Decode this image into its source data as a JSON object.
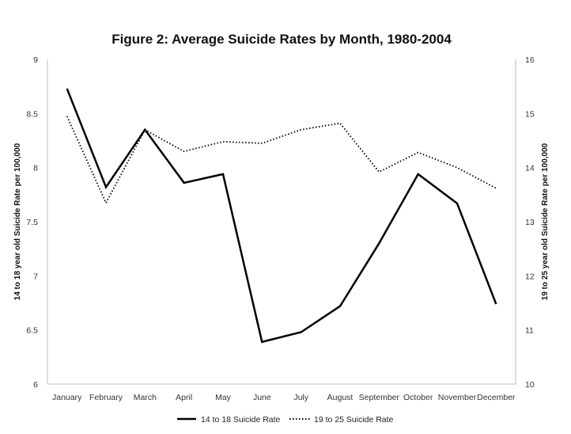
{
  "chart_data": {
    "type": "line",
    "title": "Figure 2: Average Suicide Rates by Month, 1980-2004",
    "categories": [
      "January",
      "February",
      "March",
      "April",
      "May",
      "June",
      "July",
      "August",
      "September",
      "October",
      "November",
      "December"
    ],
    "series": [
      {
        "name": "14 to 18 Suicide Rate",
        "axis": "left",
        "style": "solid",
        "values": [
          8.73,
          7.82,
          8.35,
          7.86,
          7.94,
          6.39,
          6.48,
          6.72,
          7.3,
          7.94,
          7.67,
          6.74
        ]
      },
      {
        "name": "19 to 25 Suicide Rate",
        "axis": "right",
        "style": "dotted",
        "values": [
          14.95,
          13.35,
          14.7,
          14.3,
          14.48,
          14.45,
          14.7,
          14.82,
          13.92,
          14.28,
          14.0,
          13.62
        ]
      }
    ],
    "ylabel": "14 to 18 year old Suicide Rate per 100,000",
    "ylabel_right": "19 to 25 year old Suicide Rate per 100,000",
    "ylim": [
      6,
      9
    ],
    "ylim_right": [
      10,
      16
    ],
    "yticks": [
      "6",
      "6.5",
      "7",
      "7.5",
      "8",
      "8.5",
      "9"
    ],
    "yticks_right": [
      "10",
      "11",
      "12",
      "13",
      "14",
      "15",
      "16"
    ],
    "grid": false,
    "legend_position": "bottom"
  }
}
